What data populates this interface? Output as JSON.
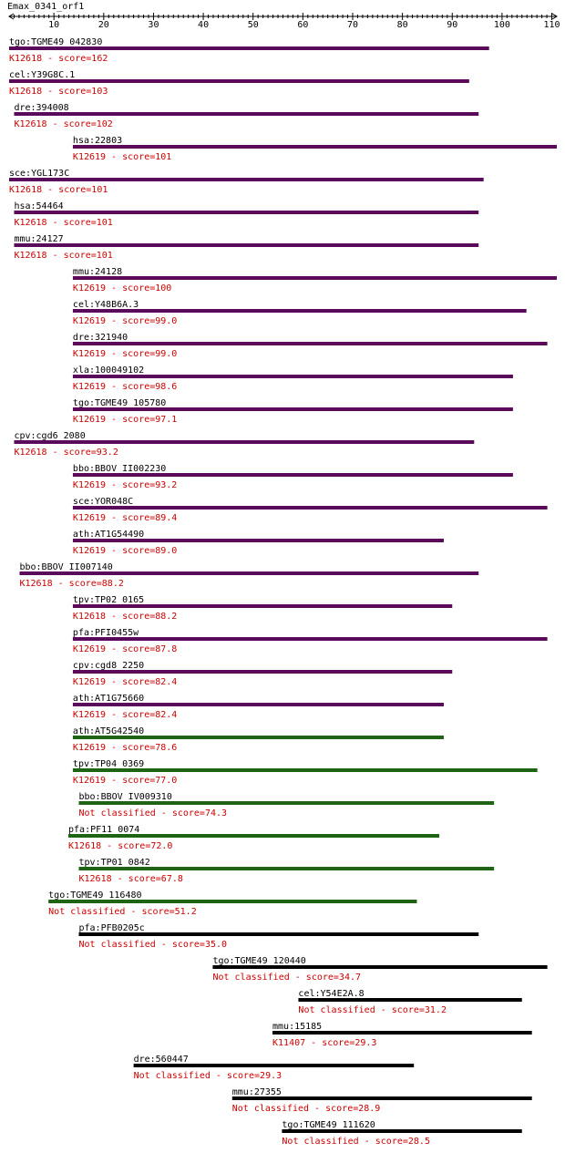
{
  "chart_data": {
    "type": "bar",
    "title": "Emax_0341_orf1",
    "xlim": [
      1,
      111
    ],
    "axis_ticks": [
      "10",
      "20",
      "30",
      "40",
      "50",
      "60",
      "70",
      "80",
      "90",
      "100",
      "110"
    ],
    "colors": {
      "purple": "#5a0a5a",
      "green": "#1e6414",
      "black": "#000000",
      "label_red": "#cc0000"
    },
    "hits": [
      {
        "name": "tgo:TGME49_042830",
        "label": "K12618 - score=162",
        "start": 1,
        "end": 97.4,
        "color": "purple"
      },
      {
        "name": "cel:Y39G8C.1",
        "label": "K12618 - score=103",
        "start": 1,
        "end": 93.4,
        "color": "purple"
      },
      {
        "name": "dre:394008",
        "label": "K12618 - score=102",
        "start": 2,
        "end": 95.3,
        "color": "purple"
      },
      {
        "name": "hsa:22803",
        "label": "K12619 - score=101",
        "start": 13.8,
        "end": 111,
        "color": "purple"
      },
      {
        "name": "sce:YGL173C",
        "label": "K12618 - score=101",
        "start": 1,
        "end": 96.3,
        "color": "purple"
      },
      {
        "name": "hsa:54464",
        "label": "K12618 - score=101",
        "start": 2,
        "end": 95.3,
        "color": "purple"
      },
      {
        "name": "mmu:24127",
        "label": "K12618 - score=101",
        "start": 2,
        "end": 95.3,
        "color": "purple"
      },
      {
        "name": "mmu:24128",
        "label": "K12619 - score=100",
        "start": 13.8,
        "end": 111,
        "color": "purple"
      },
      {
        "name": "cel:Y48B6A.3",
        "label": "K12619 - score=99.0",
        "start": 13.8,
        "end": 104.9,
        "color": "purple"
      },
      {
        "name": "dre:321940",
        "label": "K12619 - score=99.0",
        "start": 13.8,
        "end": 109.1,
        "color": "purple"
      },
      {
        "name": "xla:100049102",
        "label": "K12619 - score=98.6",
        "start": 13.8,
        "end": 102.2,
        "color": "purple"
      },
      {
        "name": "tgo:TGME49_105780",
        "label": "K12619 - score=97.1",
        "start": 13.8,
        "end": 102.2,
        "color": "purple"
      },
      {
        "name": "cpv:cgd6_2080",
        "label": "K12618 - score=93.2",
        "start": 2,
        "end": 94.4,
        "color": "purple"
      },
      {
        "name": "bbo:BBOV_II002230",
        "label": "K12619 - score=93.2",
        "start": 13.8,
        "end": 102.2,
        "color": "purple"
      },
      {
        "name": "sce:YOR048C",
        "label": "K12619 - score=89.4",
        "start": 13.8,
        "end": 109.1,
        "color": "purple"
      },
      {
        "name": "ath:AT1G54490",
        "label": "K12619 - score=89.0",
        "start": 13.8,
        "end": 88.3,
        "color": "purple"
      },
      {
        "name": "bbo:BBOV_II007140",
        "label": "K12618 - score=88.2",
        "start": 3.1,
        "end": 95.3,
        "color": "purple"
      },
      {
        "name": "tpv:TP02_0165",
        "label": "K12618 - score=88.2",
        "start": 13.8,
        "end": 90,
        "color": "purple"
      },
      {
        "name": "pfa:PFI0455w",
        "label": "K12619 - score=87.8",
        "start": 13.8,
        "end": 109.1,
        "color": "purple"
      },
      {
        "name": "cpv:cgd8_2250",
        "label": "K12619 - score=82.4",
        "start": 13.8,
        "end": 90,
        "color": "purple"
      },
      {
        "name": "ath:AT1G75660",
        "label": "K12619 - score=82.4",
        "start": 13.8,
        "end": 88.3,
        "color": "purple"
      },
      {
        "name": "ath:AT5G42540",
        "label": "K12619 - score=78.6",
        "start": 13.8,
        "end": 88.3,
        "color": "green"
      },
      {
        "name": "tpv:TP04_0369",
        "label": "K12619 - score=77.0",
        "start": 13.8,
        "end": 107.1,
        "color": "green"
      },
      {
        "name": "bbo:BBOV_IV009310",
        "label": "Not classified - score=74.3",
        "start": 15,
        "end": 98.4,
        "color": "green"
      },
      {
        "name": "pfa:PF11_0074",
        "label": "K12618 - score=72.0",
        "start": 12.9,
        "end": 87.4,
        "color": "green"
      },
      {
        "name": "tpv:TP01_0842",
        "label": "K12618 - score=67.8",
        "start": 15,
        "end": 98.4,
        "color": "green"
      },
      {
        "name": "tgo:TGME49_116480",
        "label": "Not classified - score=51.2",
        "start": 8.9,
        "end": 82.9,
        "color": "green"
      },
      {
        "name": "pfa:PFB0205c",
        "label": "Not classified - score=35.0",
        "start": 15,
        "end": 95.3,
        "color": "black"
      },
      {
        "name": "tgo:TGME49_120440",
        "label": "Not classified - score=34.7",
        "start": 41.9,
        "end": 109.1,
        "color": "black"
      },
      {
        "name": "cel:Y54E2A.8",
        "label": "Not classified - score=31.2",
        "start": 59.1,
        "end": 104,
        "color": "black"
      },
      {
        "name": "mmu:15185",
        "label": "K11407 - score=29.3",
        "start": 53.9,
        "end": 106,
        "color": "black"
      },
      {
        "name": "dre:560447",
        "label": "Not classified - score=29.3",
        "start": 26,
        "end": 82.3,
        "color": "black"
      },
      {
        "name": "mmu:27355",
        "label": "Not classified - score=28.9",
        "start": 45.8,
        "end": 106,
        "color": "black"
      },
      {
        "name": "tgo:TGME49_111620",
        "label": "Not classified - score=28.5",
        "start": 55.8,
        "end": 104,
        "color": "black"
      }
    ]
  }
}
